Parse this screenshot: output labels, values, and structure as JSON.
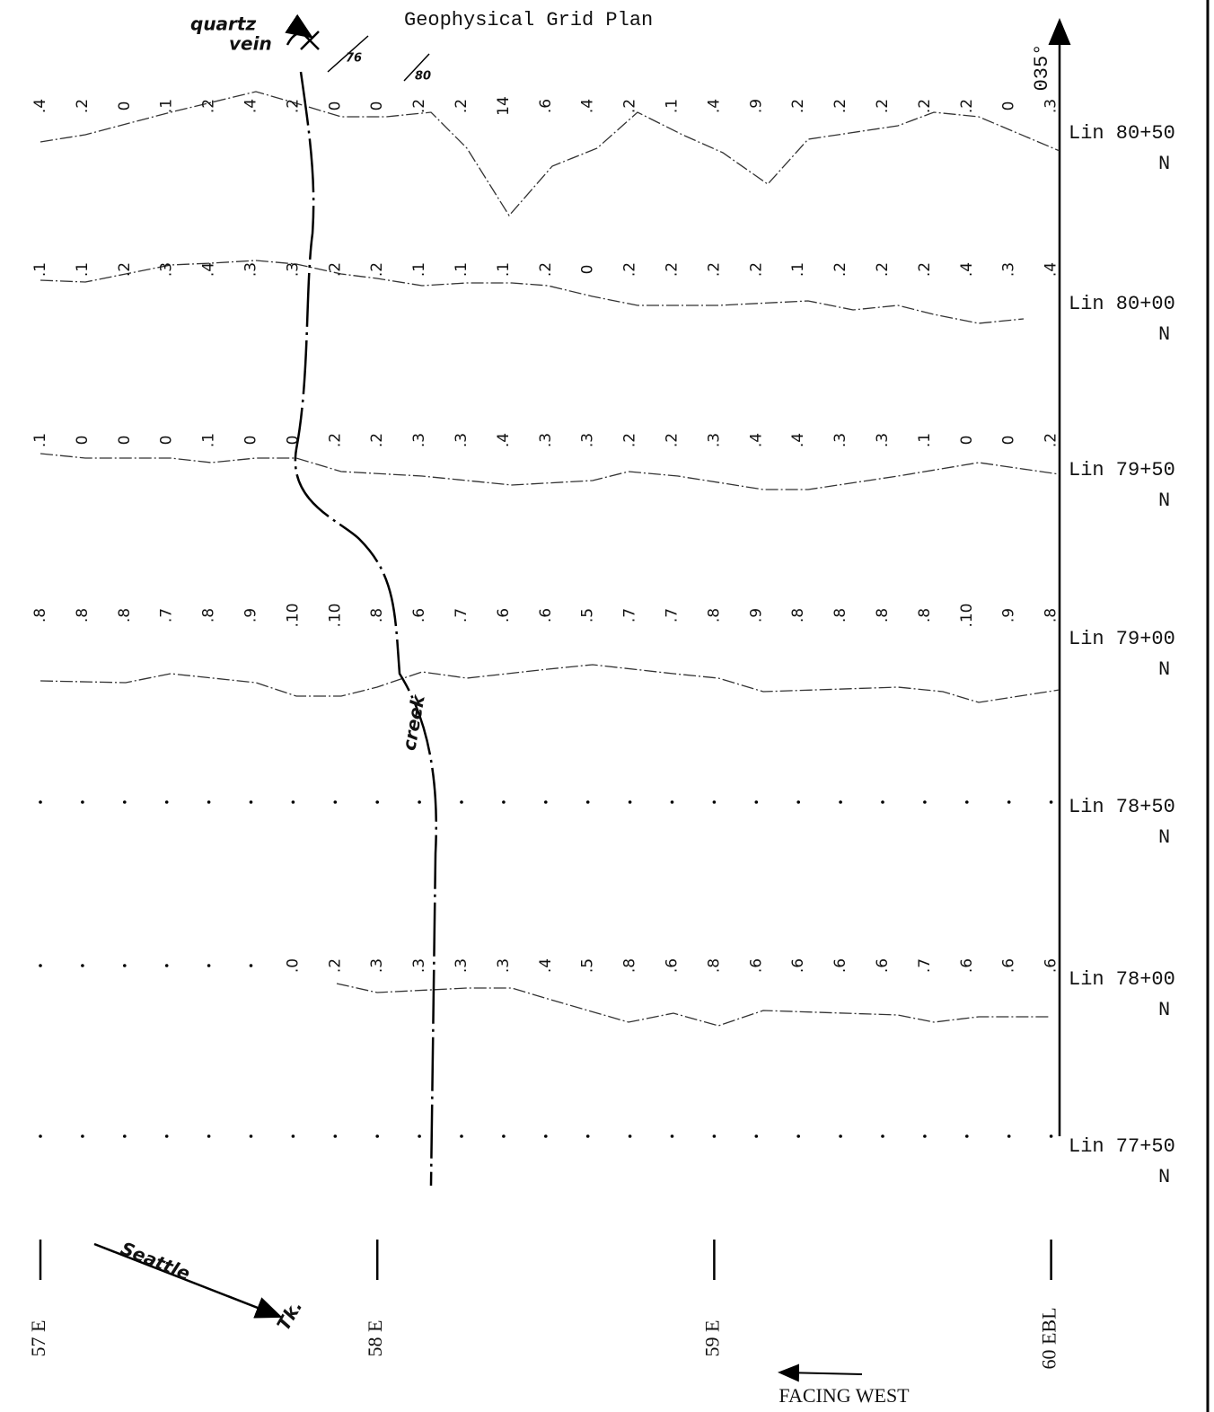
{
  "title": "Geophysical Grid Plan",
  "north_arrow": "035°",
  "annotations": {
    "quartz_vein_1": "quartz",
    "quartz_vein_2": "vein",
    "dip_1": "76",
    "dip_2": "80",
    "creek": "creek",
    "road_1": "Seattle",
    "road_2": "Tk.",
    "facing": "FACING WEST"
  },
  "lines": [
    {
      "label": "Lin 80+50",
      "suffix": "N",
      "readings": [
        ".4",
        ".2",
        "0",
        ".1",
        ".2",
        ".4",
        ".2",
        "0",
        "0",
        ".2",
        ".2",
        "14",
        ".6",
        ".4",
        ".2",
        ".1",
        ".4",
        ".9",
        ".2",
        ".2",
        ".2",
        ".2",
        ".2",
        "0",
        ".3"
      ]
    },
    {
      "label": "Lin 80+00",
      "suffix": "N",
      "readings": [
        ".1",
        ".1",
        ".2",
        ".3",
        ".4",
        ".3",
        ".3",
        ".2",
        ".2",
        ".1",
        ".1",
        ".1",
        ".2",
        "0",
        ".2",
        ".2",
        ".2",
        ".2",
        ".1",
        ".2",
        ".2",
        ".2",
        ".4",
        ".3",
        ".4"
      ]
    },
    {
      "label": "Lin 79+50",
      "suffix": "N",
      "readings": [
        ".1",
        "0",
        "0",
        "0",
        ".1",
        "0",
        "0",
        ".2",
        ".2",
        ".3",
        ".3",
        ".4",
        ".3",
        ".3",
        ".2",
        ".2",
        ".3",
        ".4",
        ".4",
        ".3",
        ".3",
        ".1",
        "0",
        "0",
        ".2"
      ]
    },
    {
      "label": "Lin 79+00",
      "suffix": "N",
      "readings": [
        ".8",
        ".8",
        ".8",
        ".7",
        ".8",
        ".9",
        ".10",
        ".10",
        ".8",
        ".6",
        ".7",
        ".6",
        ".6",
        ".5",
        ".7",
        ".7",
        ".8",
        ".9",
        ".8",
        ".8",
        ".8",
        ".8",
        ".10",
        ".9",
        ".8"
      ]
    },
    {
      "label": "Lin 78+50",
      "suffix": "N",
      "readings": []
    },
    {
      "label": "Lin 78+00",
      "suffix": "N",
      "readings": [
        null,
        null,
        null,
        null,
        null,
        null,
        ".0",
        ".2",
        ".3",
        ".3",
        ".3",
        ".3",
        ".4",
        ".5",
        ".8",
        ".6",
        ".8",
        ".6",
        ".6",
        ".6",
        ".6",
        ".7",
        ".6",
        ".6",
        ".6"
      ]
    },
    {
      "label": "Lin 77+50",
      "suffix": "N",
      "readings": []
    }
  ],
  "baselines": [
    "57 E",
    "58 E",
    "59 E",
    "60 EBL"
  ]
}
